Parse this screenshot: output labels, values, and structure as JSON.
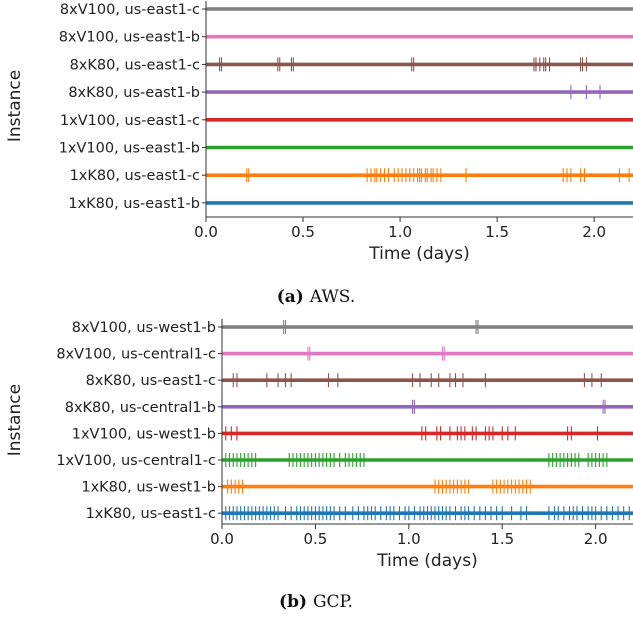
{
  "colors": {
    "series": [
      "#1f77b4",
      "#ff7f0e",
      "#2ca02c",
      "#d62728",
      "#9467bd",
      "#8c564b",
      "#e377c2",
      "#7f7f7f"
    ]
  },
  "chart_data": [
    {
      "type": "event-timeline",
      "caption_tag": "(a)",
      "caption_text": "AWS.",
      "xlabel": "Time (days)",
      "ylabel": "Instance",
      "xlim": [
        0,
        2.2
      ],
      "xticks": [
        "0.0",
        "0.5",
        "1.0",
        "1.5",
        "2.0"
      ],
      "grid": false,
      "series": [
        {
          "name": "1xK80, us-east1-b",
          "events": []
        },
        {
          "name": "1xK80, us-east1-c",
          "events": [
            0.21,
            0.22,
            0.83,
            0.85,
            0.87,
            0.88,
            0.9,
            0.92,
            0.94,
            0.97,
            0.99,
            1.01,
            1.03,
            1.05,
            1.07,
            1.09,
            1.1,
            1.11,
            1.13,
            1.14,
            1.16,
            1.17,
            1.19,
            1.21,
            1.34,
            1.84,
            1.86,
            1.88,
            1.93,
            1.95,
            2.13,
            2.18
          ]
        },
        {
          "name": "1xV100, us-east1-b",
          "events": []
        },
        {
          "name": "1xV100, us-east1-c",
          "events": []
        },
        {
          "name": "8xK80, us-east1-b",
          "events": [
            1.88,
            1.96,
            2.03
          ]
        },
        {
          "name": "8xK80, us-east1-c",
          "events": [
            0.07,
            0.08,
            0.37,
            0.38,
            0.44,
            0.45,
            1.06,
            1.07,
            1.69,
            1.7,
            1.72,
            1.74,
            1.75,
            1.77,
            1.93,
            1.94,
            1.96
          ]
        },
        {
          "name": "8xV100, us-east1-b",
          "events": []
        },
        {
          "name": "8xV100, us-east1-c",
          "events": []
        }
      ]
    },
    {
      "type": "event-timeline",
      "caption_tag": "(b)",
      "caption_text": "GCP.",
      "xlabel": "Time (days)",
      "ylabel": "Instance",
      "xlim": [
        0,
        2.2
      ],
      "xticks": [
        "0.0",
        "0.5",
        "1.0",
        "1.5",
        "2.0"
      ],
      "grid": false,
      "series": [
        {
          "name": "1xK80, us-east1-c",
          "events": [
            0.02,
            0.04,
            0.06,
            0.08,
            0.1,
            0.12,
            0.14,
            0.16,
            0.18,
            0.2,
            0.22,
            0.24,
            0.26,
            0.28,
            0.3,
            0.34,
            0.37,
            0.4,
            0.42,
            0.44,
            0.46,
            0.48,
            0.5,
            0.52,
            0.54,
            0.56,
            0.58,
            0.6,
            0.63,
            0.66,
            0.7,
            0.73,
            0.76,
            0.78,
            0.8,
            0.82,
            0.85,
            0.88,
            0.9,
            0.92,
            0.95,
            0.98,
            1.0,
            1.03,
            1.06,
            1.08,
            1.1,
            1.12,
            1.14,
            1.16,
            1.18,
            1.2,
            1.22,
            1.25,
            1.28,
            1.3,
            1.32,
            1.35,
            1.38,
            1.41,
            1.44,
            1.47,
            1.5,
            1.55,
            1.6,
            1.63,
            1.75,
            1.78,
            1.8,
            1.83,
            1.86,
            1.88,
            1.9,
            1.93,
            1.96,
            1.98,
            2.0,
            2.03,
            2.06,
            2.09,
            2.12,
            2.15,
            2.18
          ]
        },
        {
          "name": "1xK80, us-west1-b",
          "events": [
            0.03,
            0.05,
            0.07,
            0.09,
            0.11,
            1.14,
            1.16,
            1.18,
            1.2,
            1.22,
            1.24,
            1.26,
            1.28,
            1.3,
            1.32,
            1.45,
            1.47,
            1.49,
            1.51,
            1.53,
            1.55,
            1.57,
            1.59,
            1.61,
            1.63,
            1.65
          ]
        },
        {
          "name": "1xV100, us-central1-c",
          "events": [
            0.02,
            0.04,
            0.06,
            0.08,
            0.1,
            0.12,
            0.14,
            0.16,
            0.18,
            0.36,
            0.38,
            0.4,
            0.42,
            0.44,
            0.46,
            0.48,
            0.5,
            0.52,
            0.54,
            0.56,
            0.58,
            0.6,
            0.63,
            0.66,
            0.68,
            0.7,
            0.72,
            0.74,
            0.76,
            1.75,
            1.77,
            1.79,
            1.81,
            1.83,
            1.85,
            1.87,
            1.89,
            1.91,
            1.96,
            1.98,
            2.0,
            2.02,
            2.04,
            2.06
          ]
        },
        {
          "name": "1xV100, us-west1-b",
          "events": [
            0.02,
            0.05,
            0.08,
            1.07,
            1.09,
            1.15,
            1.17,
            1.22,
            1.26,
            1.28,
            1.3,
            1.34,
            1.36,
            1.41,
            1.43,
            1.45,
            1.5,
            1.53,
            1.57,
            1.85,
            1.87,
            2.01
          ]
        },
        {
          "name": "8xK80, us-central1-b",
          "events": [
            1.02,
            1.03,
            2.04,
            2.05
          ]
        },
        {
          "name": "8xK80, us-east1-c",
          "events": [
            0.06,
            0.08,
            0.24,
            0.3,
            0.34,
            0.37,
            0.57,
            0.62,
            1.02,
            1.06,
            1.12,
            1.16,
            1.22,
            1.25,
            1.29,
            1.41,
            1.94,
            1.98,
            2.03
          ]
        },
        {
          "name": "8xV100, us-central1-c",
          "events": [
            0.46,
            0.47,
            1.18,
            1.19
          ]
        },
        {
          "name": "8xV100, us-west1-b",
          "events": [
            0.33,
            0.34,
            1.36,
            1.37
          ]
        }
      ]
    }
  ]
}
